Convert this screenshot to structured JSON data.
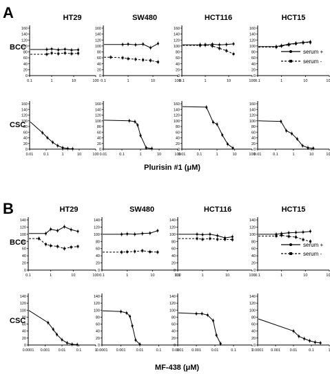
{
  "figure": {
    "panels": [
      {
        "letter": "A",
        "columns": [
          "HT29",
          "SW480",
          "HCT116",
          "HCT15"
        ],
        "rows": [
          "BCC",
          "CSC"
        ],
        "xlabel": "Plurisin #1 (μM)",
        "legend": {
          "serum_plus": "serum +",
          "serum_minus": "serum -"
        },
        "bcc_y_ticks": [
          "0",
          "20",
          "40",
          "60",
          "80",
          "100",
          "120",
          "140",
          "160"
        ],
        "bcc_x_ticks": [
          "0.1",
          "1",
          "10",
          "100"
        ],
        "csc_y_ticks": [
          "0",
          "20",
          "40",
          "60",
          "80",
          "100",
          "120",
          "140",
          "160"
        ],
        "csc_x_ticks": [
          "0.01",
          "0.1",
          "1",
          "10",
          "100"
        ]
      },
      {
        "letter": "B",
        "columns": [
          "HT29",
          "SW480",
          "HCT116",
          "HCT15"
        ],
        "rows": [
          "BCC",
          "CSC"
        ],
        "xlabel": "MF-438 (μM)",
        "legend": {
          "serum_plus": "serum +",
          "serum_minus": "serum -"
        },
        "bcc_y_ticks": [
          "0",
          "20",
          "40",
          "60",
          "80",
          "100",
          "120",
          "140"
        ],
        "bcc_x_ticks": [
          "0.1",
          "1",
          "10",
          "100"
        ],
        "csc_y_ticks": [
          "0",
          "20",
          "40",
          "60",
          "80",
          "100",
          "120",
          "140"
        ],
        "csc_x_ticks": [
          "0.0001",
          "0.001",
          "0.01",
          "0.1",
          "1"
        ]
      }
    ]
  },
  "chart_data": [
    {
      "panel": "A",
      "row": "BCC",
      "cell_line": "HT29",
      "type": "line",
      "xscale": "log",
      "xlim": [
        0.1,
        100
      ],
      "ylim": [
        0,
        160
      ],
      "series": [
        {
          "name": "serum +",
          "x": [
            0.6,
            1,
            2,
            4,
            8,
            16
          ],
          "y": [
            88,
            90,
            87,
            89,
            86,
            87
          ]
        },
        {
          "name": "serum -",
          "x": [
            0.6,
            1,
            2,
            4,
            8,
            16
          ],
          "y": [
            72,
            76,
            74,
            76,
            74,
            75
          ]
        }
      ]
    },
    {
      "panel": "A",
      "row": "BCC",
      "cell_line": "SW480",
      "type": "line",
      "xscale": "log",
      "xlim": [
        0.1,
        100
      ],
      "ylim": [
        0,
        160
      ],
      "series": [
        {
          "name": "serum +",
          "x": [
            0.6,
            1,
            2,
            4,
            8,
            16
          ],
          "y": [
            105,
            106,
            104,
            106,
            94,
            108
          ]
        },
        {
          "name": "serum -",
          "x": [
            0.2,
            0.6,
            1,
            2,
            4,
            8,
            16
          ],
          "y": [
            62,
            60,
            57,
            55,
            53,
            51,
            46
          ]
        }
      ]
    },
    {
      "panel": "A",
      "row": "BCC",
      "cell_line": "HCT116",
      "type": "line",
      "xscale": "log",
      "xlim": [
        0.1,
        100
      ],
      "ylim": [
        0,
        160
      ],
      "series": [
        {
          "name": "serum +",
          "x": [
            0.6,
            1,
            2,
            4,
            8,
            16
          ],
          "y": [
            104,
            103,
            106,
            104,
            105,
            107
          ]
        },
        {
          "name": "serum -",
          "x": [
            0.6,
            1,
            2,
            4,
            8,
            16
          ],
          "y": [
            102,
            104,
            100,
            92,
            84,
            73
          ]
        }
      ]
    },
    {
      "panel": "A",
      "row": "BCC",
      "cell_line": "HCT15",
      "type": "line",
      "xscale": "log",
      "xlim": [
        0.1,
        100
      ],
      "ylim": [
        0,
        160
      ],
      "series": [
        {
          "name": "serum +",
          "x": [
            0.6,
            1,
            2,
            4,
            8,
            16
          ],
          "y": [
            98,
            101,
            106,
            109,
            112,
            114
          ]
        },
        {
          "name": "serum -",
          "x": [
            0.6,
            1,
            2,
            4,
            8,
            16
          ],
          "y": [
            96,
            100,
            104,
            108,
            111,
            112
          ]
        }
      ]
    },
    {
      "panel": "A",
      "row": "CSC",
      "cell_line": "HT29",
      "type": "line",
      "xscale": "log",
      "xlim": [
        0.01,
        100
      ],
      "ylim": [
        0,
        160
      ],
      "series": [
        {
          "name": "",
          "x": [
            0.06,
            0.12,
            0.25,
            0.5,
            1,
            2,
            4
          ],
          "y": [
            58,
            40,
            24,
            12,
            5,
            2,
            1
          ]
        }
      ]
    },
    {
      "panel": "A",
      "row": "CSC",
      "cell_line": "SW480",
      "type": "line",
      "xscale": "log",
      "xlim": [
        0.01,
        100
      ],
      "ylim": [
        0,
        160
      ],
      "series": [
        {
          "name": "",
          "x": [
            0.25,
            0.5,
            0.7,
            1,
            2,
            4
          ],
          "y": [
            100,
            97,
            85,
            48,
            5,
            2
          ]
        }
      ]
    },
    {
      "panel": "A",
      "row": "CSC",
      "cell_line": "HCT116",
      "type": "line",
      "xscale": "log",
      "xlim": [
        0.01,
        100
      ],
      "ylim": [
        0,
        160
      ],
      "series": [
        {
          "name": "",
          "x": [
            0.25,
            0.6,
            1,
            2,
            4,
            8
          ],
          "y": [
            148,
            95,
            88,
            50,
            18,
            4
          ]
        }
      ]
    },
    {
      "panel": "A",
      "row": "CSC",
      "cell_line": "HCT15",
      "type": "line",
      "xscale": "log",
      "xlim": [
        0.01,
        100
      ],
      "ylim": [
        0,
        160
      ],
      "series": [
        {
          "name": "",
          "x": [
            0.2,
            0.4,
            0.8,
            1.6,
            3.2,
            6.4,
            12.8
          ],
          "y": [
            98,
            65,
            55,
            36,
            12,
            5,
            3
          ]
        }
      ]
    },
    {
      "panel": "B",
      "row": "BCC",
      "cell_line": "HT29",
      "type": "line",
      "xscale": "log",
      "xlim": [
        0.1,
        100
      ],
      "ylim": [
        0,
        140
      ],
      "series": [
        {
          "name": "serum +",
          "x": [
            0.6,
            1,
            2,
            4,
            8,
            16
          ],
          "y": [
            102,
            114,
            110,
            121,
            113,
            108
          ]
        },
        {
          "name": "serum -",
          "x": [
            0.3,
            0.6,
            1,
            2,
            4,
            8,
            16
          ],
          "y": [
            88,
            72,
            68,
            66,
            60,
            64,
            66
          ]
        }
      ]
    },
    {
      "panel": "B",
      "row": "BCC",
      "cell_line": "SW480",
      "type": "line",
      "xscale": "log",
      "xlim": [
        0.1,
        100
      ],
      "ylim": [
        0,
        140
      ],
      "series": [
        {
          "name": "serum +",
          "x": [
            0.6,
            1,
            2,
            4,
            8,
            16
          ],
          "y": [
            100,
            101,
            100,
            102,
            103,
            110
          ]
        },
        {
          "name": "serum -",
          "x": [
            0.6,
            1,
            2,
            4,
            8,
            16
          ],
          "y": [
            50,
            51,
            52,
            54,
            51,
            50
          ]
        }
      ]
    },
    {
      "panel": "B",
      "row": "BCC",
      "cell_line": "HCT116",
      "type": "line",
      "xscale": "log",
      "xlim": [
        0.1,
        100
      ],
      "ylim": [
        0,
        140
      ],
      "series": [
        {
          "name": "serum +",
          "x": [
            0.6,
            1,
            2,
            4,
            8,
            16
          ],
          "y": [
            100,
            99,
            100,
            96,
            90,
            93
          ]
        },
        {
          "name": "serum -",
          "x": [
            0.6,
            1,
            2,
            4,
            8,
            16
          ],
          "y": [
            88,
            86,
            88,
            86,
            86,
            85
          ]
        }
      ]
    },
    {
      "panel": "B",
      "row": "BCC",
      "cell_line": "HCT15",
      "type": "line",
      "xscale": "log",
      "xlim": [
        0.1,
        100
      ],
      "ylim": [
        0,
        140
      ],
      "series": [
        {
          "name": "serum +",
          "x": [
            0.6,
            1,
            2,
            4,
            8,
            16
          ],
          "y": [
            100,
            102,
            104,
            105,
            106,
            108
          ]
        },
        {
          "name": "serum -",
          "x": [
            0.6,
            1,
            2,
            4,
            8,
            16
          ],
          "y": [
            95,
            97,
            94,
            92,
            85,
            80
          ]
        }
      ]
    },
    {
      "panel": "B",
      "row": "CSC",
      "cell_line": "HT29",
      "type": "line",
      "xscale": "log",
      "xlim": [
        0.0001,
        1
      ],
      "ylim": [
        0,
        140
      ],
      "series": [
        {
          "name": "",
          "x": [
            0.0015,
            0.003,
            0.005,
            0.01,
            0.02,
            0.04,
            0.08
          ],
          "y": [
            64,
            45,
            30,
            15,
            6,
            2,
            1
          ]
        }
      ]
    },
    {
      "panel": "B",
      "row": "CSC",
      "cell_line": "SW480",
      "type": "line",
      "xscale": "log",
      "xlim": [
        0.0001,
        1
      ],
      "ylim": [
        0,
        140
      ],
      "series": [
        {
          "name": "",
          "x": [
            0.001,
            0.002,
            0.003,
            0.004,
            0.006,
            0.01
          ],
          "y": [
            96,
            92,
            82,
            55,
            14,
            2
          ]
        }
      ]
    },
    {
      "panel": "B",
      "row": "CSC",
      "cell_line": "HCT116",
      "type": "line",
      "xscale": "log",
      "xlim": [
        0.0001,
        1
      ],
      "ylim": [
        0,
        140
      ],
      "series": [
        {
          "name": "",
          "x": [
            0.001,
            0.002,
            0.004,
            0.008,
            0.012,
            0.02
          ],
          "y": [
            90,
            90,
            86,
            70,
            28,
            4
          ]
        }
      ]
    },
    {
      "panel": "B",
      "row": "CSC",
      "cell_line": "HCT15",
      "type": "line",
      "xscale": "log",
      "xlim": [
        0.0001,
        1
      ],
      "ylim": [
        0,
        140
      ],
      "series": [
        {
          "name": "",
          "x": [
            0.01,
            0.02,
            0.04,
            0.08,
            0.16,
            0.32
          ],
          "y": [
            40,
            25,
            18,
            12,
            8,
            6
          ]
        }
      ]
    }
  ]
}
